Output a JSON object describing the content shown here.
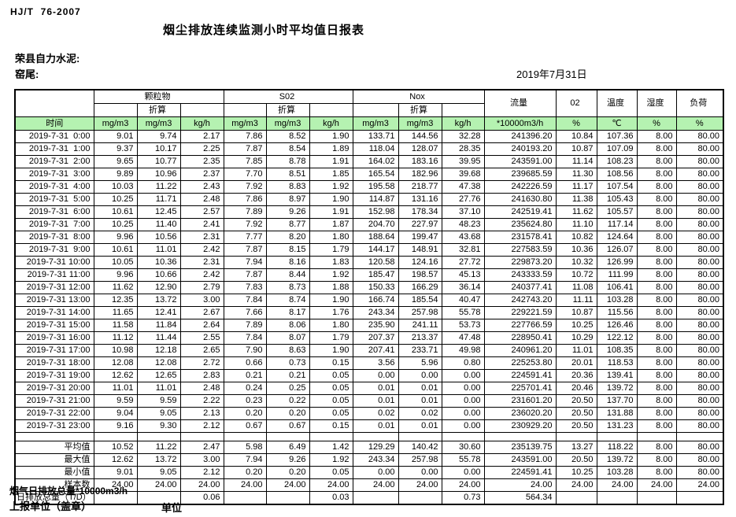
{
  "page": {
    "doc_code": "HJ/T  76-2007",
    "title": "烟尘排放连续监测小时平均值日报表",
    "company": "荣县自力水泥:",
    "location": "窑尾:",
    "date": "2019年7月31日",
    "footer_note": "烟气日排放总量*10000m3/h",
    "footer_report_unit": "上报单位（盖章）",
    "footer_unit": "单位"
  },
  "colors": {
    "header_green": "#b5f2b1"
  },
  "table": {
    "groups": {
      "pm": "颗粒物",
      "so2": "S02",
      "nox": "Nox",
      "flow": "流量",
      "o2": "02",
      "temp": "温度",
      "humidity": "湿度",
      "load": "负荷",
      "converted": "折算"
    },
    "units": [
      "时间",
      "mg/m3",
      "mg/m3",
      "kg/h",
      "mg/m3",
      "mg/m3",
      "kg/h",
      "mg/m3",
      "mg/m3",
      "kg/h",
      "*10000m3/h",
      "%",
      "℃",
      "%",
      "%"
    ],
    "rows": [
      [
        "2019-7-31  0:00",
        "9.01",
        "9.74",
        "2.17",
        "7.86",
        "8.52",
        "1.90",
        "133.71",
        "144.56",
        "32.28",
        "241396.20",
        "10.84",
        "107.36",
        "8.00",
        "80.00"
      ],
      [
        "2019-7-31  1:00",
        "9.37",
        "10.17",
        "2.25",
        "7.87",
        "8.54",
        "1.89",
        "118.04",
        "128.07",
        "28.35",
        "240193.20",
        "10.87",
        "107.09",
        "8.00",
        "80.00"
      ],
      [
        "2019-7-31  2:00",
        "9.65",
        "10.77",
        "2.35",
        "7.85",
        "8.78",
        "1.91",
        "164.02",
        "183.16",
        "39.95",
        "243591.00",
        "11.14",
        "108.23",
        "8.00",
        "80.00"
      ],
      [
        "2019-7-31  3:00",
        "9.89",
        "10.96",
        "2.37",
        "7.70",
        "8.51",
        "1.85",
        "165.54",
        "182.96",
        "39.68",
        "239685.59",
        "11.30",
        "108.56",
        "8.00",
        "80.00"
      ],
      [
        "2019-7-31  4:00",
        "10.03",
        "11.22",
        "2.43",
        "7.92",
        "8.83",
        "1.92",
        "195.58",
        "218.77",
        "47.38",
        "242226.59",
        "11.17",
        "107.54",
        "8.00",
        "80.00"
      ],
      [
        "2019-7-31  5:00",
        "10.25",
        "11.71",
        "2.48",
        "7.86",
        "8.97",
        "1.90",
        "114.87",
        "131.16",
        "27.76",
        "241630.80",
        "11.38",
        "105.43",
        "8.00",
        "80.00"
      ],
      [
        "2019-7-31  6:00",
        "10.61",
        "12.45",
        "2.57",
        "7.89",
        "9.26",
        "1.91",
        "152.98",
        "178.34",
        "37.10",
        "242519.41",
        "11.62",
        "105.57",
        "8.00",
        "80.00"
      ],
      [
        "2019-7-31  7:00",
        "10.25",
        "11.40",
        "2.41",
        "7.92",
        "8.77",
        "1.87",
        "204.70",
        "227.97",
        "48.23",
        "235624.80",
        "11.10",
        "117.14",
        "8.00",
        "80.00"
      ],
      [
        "2019-7-31  8:00",
        "9.96",
        "10.56",
        "2.31",
        "7.77",
        "8.20",
        "1.80",
        "188.64",
        "199.47",
        "43.68",
        "231578.41",
        "10.82",
        "124.64",
        "8.00",
        "80.00"
      ],
      [
        "2019-7-31  9:00",
        "10.61",
        "11.01",
        "2.42",
        "7.87",
        "8.15",
        "1.79",
        "144.17",
        "148.91",
        "32.81",
        "227583.59",
        "10.36",
        "126.07",
        "8.00",
        "80.00"
      ],
      [
        "2019-7-31 10:00",
        "10.05",
        "10.36",
        "2.31",
        "7.94",
        "8.16",
        "1.83",
        "120.58",
        "124.16",
        "27.72",
        "229873.20",
        "10.32",
        "126.99",
        "8.00",
        "80.00"
      ],
      [
        "2019-7-31 11:00",
        "9.96",
        "10.66",
        "2.42",
        "7.87",
        "8.44",
        "1.92",
        "185.47",
        "198.57",
        "45.13",
        "243333.59",
        "10.72",
        "111.99",
        "8.00",
        "80.00"
      ],
      [
        "2019-7-31 12:00",
        "11.62",
        "12.90",
        "2.79",
        "7.83",
        "8.73",
        "1.88",
        "150.33",
        "166.29",
        "36.14",
        "240377.41",
        "11.08",
        "106.41",
        "8.00",
        "80.00"
      ],
      [
        "2019-7-31 13:00",
        "12.35",
        "13.72",
        "3.00",
        "7.84",
        "8.74",
        "1.90",
        "166.74",
        "185.54",
        "40.47",
        "242743.20",
        "11.11",
        "103.28",
        "8.00",
        "80.00"
      ],
      [
        "2019-7-31 14:00",
        "11.65",
        "12.41",
        "2.67",
        "7.66",
        "8.17",
        "1.76",
        "243.34",
        "257.98",
        "55.78",
        "229221.59",
        "10.87",
        "115.56",
        "8.00",
        "80.00"
      ],
      [
        "2019-7-31 15:00",
        "11.58",
        "11.84",
        "2.64",
        "7.89",
        "8.06",
        "1.80",
        "235.90",
        "241.11",
        "53.73",
        "227766.59",
        "10.25",
        "126.46",
        "8.00",
        "80.00"
      ],
      [
        "2019-7-31 16:00",
        "11.12",
        "11.44",
        "2.55",
        "7.84",
        "8.07",
        "1.79",
        "207.37",
        "213.37",
        "47.48",
        "228950.41",
        "10.29",
        "122.12",
        "8.00",
        "80.00"
      ],
      [
        "2019-7-31 17:00",
        "10.98",
        "12.18",
        "2.65",
        "7.90",
        "8.63",
        "1.90",
        "207.41",
        "233.71",
        "49.98",
        "240961.20",
        "11.01",
        "108.35",
        "8.00",
        "80.00"
      ],
      [
        "2019-7-31 18:00",
        "12.08",
        "12.08",
        "2.72",
        "0.66",
        "0.73",
        "0.15",
        "3.56",
        "5.96",
        "0.80",
        "225253.80",
        "20.01",
        "118.53",
        "8.00",
        "80.00"
      ],
      [
        "2019-7-31 19:00",
        "12.62",
        "12.65",
        "2.83",
        "0.21",
        "0.21",
        "0.05",
        "0.00",
        "0.00",
        "0.00",
        "224591.41",
        "20.36",
        "139.41",
        "8.00",
        "80.00"
      ],
      [
        "2019-7-31 20:00",
        "11.01",
        "11.01",
        "2.48",
        "0.24",
        "0.25",
        "0.05",
        "0.01",
        "0.01",
        "0.00",
        "225701.41",
        "20.46",
        "139.72",
        "8.00",
        "80.00"
      ],
      [
        "2019-7-31 21:00",
        "9.59",
        "9.59",
        "2.22",
        "0.23",
        "0.22",
        "0.05",
        "0.01",
        "0.01",
        "0.00",
        "231601.20",
        "20.50",
        "137.70",
        "8.00",
        "80.00"
      ],
      [
        "2019-7-31 22:00",
        "9.04",
        "9.05",
        "2.13",
        "0.20",
        "0.20",
        "0.05",
        "0.02",
        "0.02",
        "0.00",
        "236020.20",
        "20.50",
        "131.88",
        "8.00",
        "80.00"
      ],
      [
        "2019-7-31 23:00",
        "9.16",
        "9.30",
        "2.12",
        "0.67",
        "0.67",
        "0.15",
        "0.01",
        "0.01",
        "0.00",
        "230929.20",
        "20.50",
        "131.23",
        "8.00",
        "80.00"
      ]
    ],
    "summary": [
      {
        "label": "平均值",
        "values": [
          "10.52",
          "11.22",
          "2.47",
          "5.98",
          "6.49",
          "1.42",
          "129.29",
          "140.42",
          "30.60",
          "235139.75",
          "13.27",
          "118.22",
          "8.00",
          "80.00"
        ]
      },
      {
        "label": "最大值",
        "values": [
          "12.62",
          "13.72",
          "3.00",
          "7.94",
          "9.26",
          "1.92",
          "243.34",
          "257.98",
          "55.78",
          "243591.00",
          "20.50",
          "139.72",
          "8.00",
          "80.00"
        ]
      },
      {
        "label": "最小值",
        "values": [
          "9.01",
          "9.05",
          "2.12",
          "0.20",
          "0.20",
          "0.05",
          "0.00",
          "0.00",
          "0.00",
          "224591.41",
          "10.25",
          "103.28",
          "8.00",
          "80.00"
        ]
      },
      {
        "label": "样本数",
        "values": [
          "24.00",
          "24.00",
          "24.00",
          "24.00",
          "24.00",
          "24.00",
          "24.00",
          "24.00",
          "24.00",
          "24.00",
          "24.00",
          "24.00",
          "24.00",
          "24.00"
        ]
      },
      {
        "label": "日排放总量（T/D）",
        "values": [
          "",
          "",
          "0.06",
          "",
          "",
          "0.03",
          "",
          "",
          "0.73",
          "564.34",
          "",
          "",
          "",
          ""
        ]
      }
    ]
  }
}
